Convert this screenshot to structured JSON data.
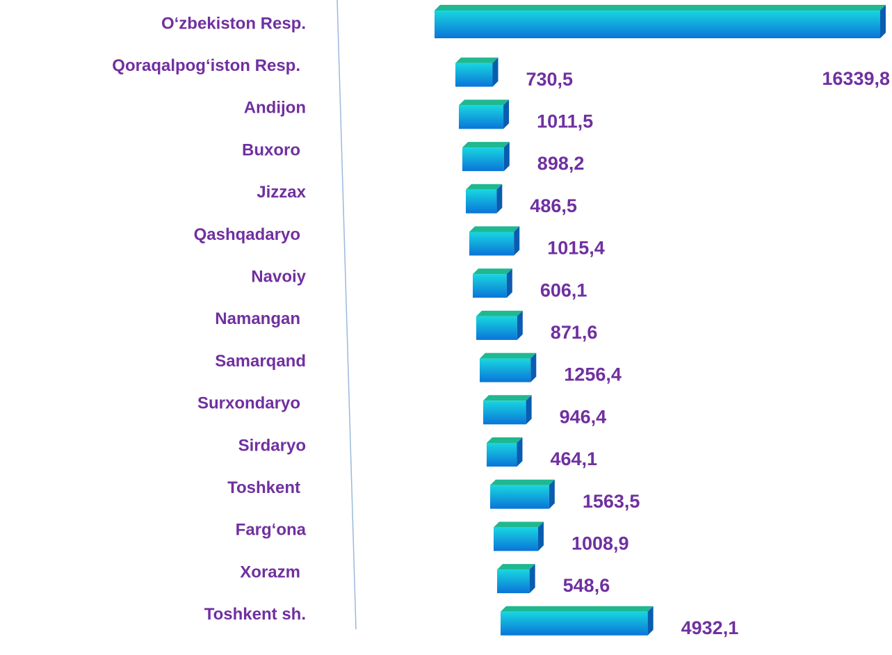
{
  "chart_data": {
    "type": "bar",
    "orientation": "horizontal",
    "categories": [
      "O‘zbekiston Resp.",
      "Qoraqalpog‘iston Resp.",
      "Andijon",
      "Buxoro",
      "Jizzax",
      "Qashqadaryo",
      "Navoiy",
      "Namangan",
      "Samarqand",
      "Surxondaryo",
      "Sirdaryo",
      "Toshkent",
      "Farg‘ona",
      "Xorazm",
      "Toshkent sh."
    ],
    "values": [
      16339.8,
      730.5,
      1011.5,
      898.2,
      486.5,
      1015.4,
      606.1,
      871.6,
      1256.4,
      946.4,
      464.1,
      1563.5,
      1008.9,
      548.6,
      4932.1
    ],
    "value_labels": [
      "16339,8",
      "730,5",
      "1011,5",
      "898,2",
      "486,5",
      "1015,4",
      "606,1",
      "871,6",
      "1256,4",
      "946,4",
      "464,1",
      "1563,5",
      "1008,9",
      "548,6",
      "4932,1"
    ],
    "color": "#1a9fe0"
  }
}
